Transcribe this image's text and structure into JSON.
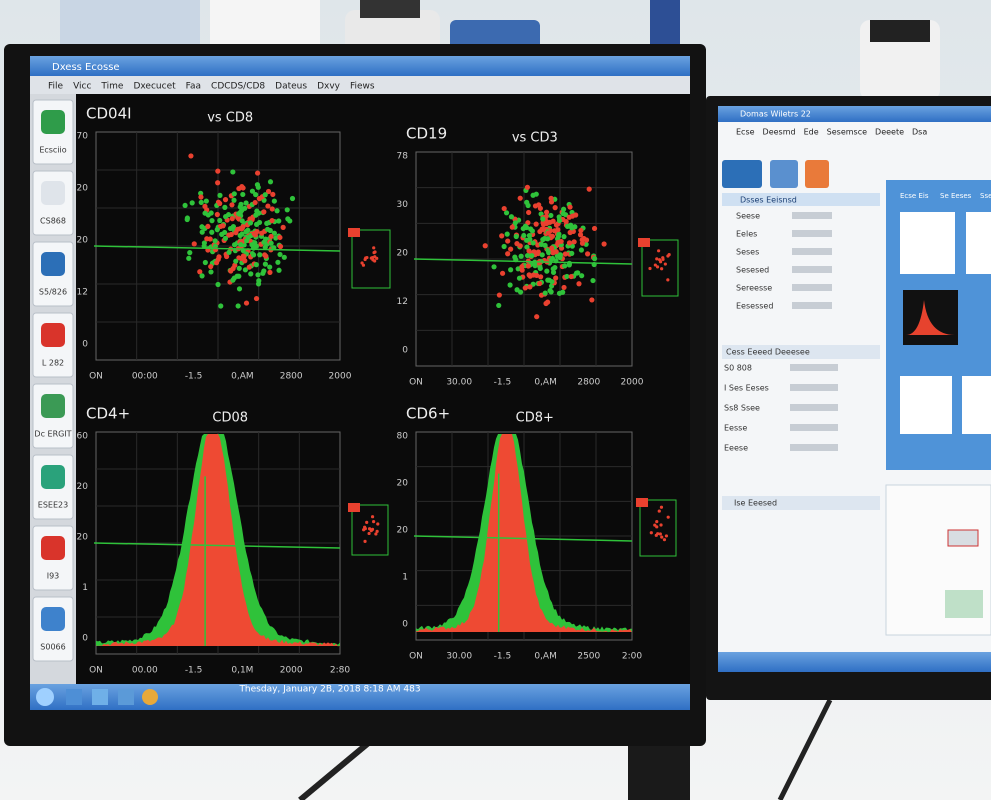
{
  "window_title": "Dxess Ecosse",
  "menu": [
    "File",
    "Vicc",
    "Time",
    "Dxecucet",
    "Faa",
    "CDCDS/CD8",
    "Dateus",
    "Dxvy",
    "Fiews"
  ],
  "sidebar": [
    "Ecsciio",
    "CS868",
    "S5/826",
    "L 282",
    "Dc ERGIT",
    "ESEE23",
    "I93",
    "S0066"
  ],
  "panels": [
    {
      "title": "CD04I",
      "subtitle": "vs CD8",
      "yticks": [
        "70",
        "20",
        "20",
        "12",
        "0"
      ],
      "xticks": [
        "ON",
        "00:00",
        "-1.5",
        "0,AM",
        "2800",
        "2000"
      ]
    },
    {
      "title": "CD19",
      "subtitle": "vs CD3",
      "yticks": [
        "78",
        "30",
        "20",
        "12",
        "0"
      ],
      "xticks": [
        "ON",
        "30.00",
        "-1.5",
        "0,AM",
        "2800",
        "2000"
      ]
    },
    {
      "title": "CD4+",
      "subtitle": "CD08",
      "yticks": [
        "60",
        "20",
        "20",
        "1",
        "0"
      ],
      "xticks": [
        "ON",
        "00.00",
        "-1.5",
        "0,1M",
        "2000",
        "2:80"
      ]
    },
    {
      "title": "CD6+",
      "subtitle": "CD8+",
      "yticks": [
        "80",
        "20",
        "20",
        "1",
        "0"
      ],
      "xticks": [
        "ON",
        "30.00",
        "-1.5",
        "0,AM",
        "2500",
        "2:00"
      ]
    }
  ],
  "taskbar_datetime": "Thesday, January 2B, 2018 8:18 AM 483",
  "right_window": {
    "title": "Domas Wiletrs 22",
    "menu": [
      "Ecse",
      "Deesmd",
      "Ede",
      "Sesemsce",
      "Deeete",
      "Dsa"
    ],
    "panel_header": "Dsses Eeisnsd",
    "rows": [
      "Seese",
      "Eeles",
      "Seses",
      "Sesesed",
      "Sereesse",
      "Eesessed"
    ],
    "section_title": "Cess Eeeed Deeesee",
    "sub_rows": [
      "S0 808",
      "I Ses Eeses",
      "Ss8 Ssee",
      "Eesse",
      "Eeese"
    ],
    "bottom_header": "Ise Eeesed",
    "tabs": [
      "Ecse Eis",
      "Se Eeses",
      "Sse"
    ]
  }
}
